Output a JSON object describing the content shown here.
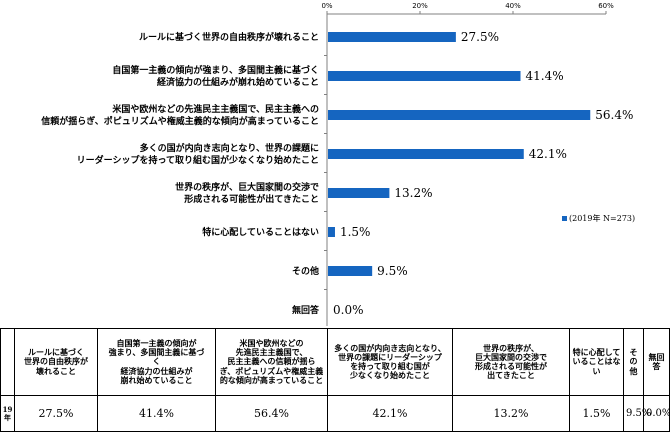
{
  "chart_data": {
    "type": "bar",
    "orientation": "horizontal",
    "categories": [
      [
        "ルールに基づく世界の自由秩序が壊れること"
      ],
      [
        "自国第一主義の傾向が強まり、多国間主義に基づく",
        "経済協力の仕組みが崩れ始めていること"
      ],
      [
        "米国や欧州などの先進民主主義国で、民主主義への",
        "信頼が揺らぎ、ポピュリズムや権威主義的な傾向が高まっていること"
      ],
      [
        "多くの国が内向き志向となり、世界の課題に",
        "リーダーシップを持って取り組む国が少なくなり始めたこと"
      ],
      [
        "世界の秩序が、巨大国家間の交渉で",
        "形成される可能性が出てきたこと"
      ],
      [
        "特に心配していることはない"
      ],
      [
        "その他"
      ],
      [
        "無回答"
      ]
    ],
    "values": [
      27.5,
      41.4,
      56.4,
      42.1,
      13.2,
      1.5,
      9.5,
      0.0
    ],
    "value_labels": [
      "27.5%",
      "41.4%",
      "56.4%",
      "42.1%",
      "13.2%",
      "1.5%",
      "9.5%",
      "0.0%"
    ],
    "xlim": [
      0,
      60
    ],
    "xticks": [
      "0%",
      "20%",
      "40%",
      "60%"
    ],
    "series": [
      {
        "name": "(2019年 N=273)",
        "values": [
          27.5,
          41.4,
          56.4,
          42.1,
          13.2,
          1.5,
          9.5,
          0.0
        ]
      }
    ],
    "color": "#1565C0",
    "grid": false,
    "legend_position": "right"
  },
  "table": {
    "row_header": "19年",
    "headers": [
      [
        "ルールに基づく",
        "世界の自由秩序が",
        "壊れること"
      ],
      [
        "自国第一主義の傾向が",
        "強まり、多国間主義に基づ",
        "く",
        "経済協力の仕組みが",
        "崩れ始めていること"
      ],
      [
        "米国や欧州などの",
        "先進民主主義国で、",
        "民主主義への信頼が揺ら",
        "ぎ、ポピュリズムや権威主義",
        "的な傾向が高まっていること"
      ],
      [
        "多くの国が内向き志向となり、",
        "世界の課題にリーダーシップ",
        "を持って取り組む国が",
        "少なくなり始めたこと"
      ],
      [
        "世界の秩序が、",
        "巨大国家間の交渉で",
        "形成される可能性が",
        "出てきたこと"
      ],
      [
        "特に心配して",
        "いることはな",
        "い"
      ],
      [
        "その他"
      ],
      [
        "無回答"
      ]
    ],
    "values": [
      "27.5%",
      "41.4%",
      "56.4%",
      "42.1%",
      "13.2%",
      "1.5%",
      "9.5%",
      "0.0%"
    ]
  }
}
